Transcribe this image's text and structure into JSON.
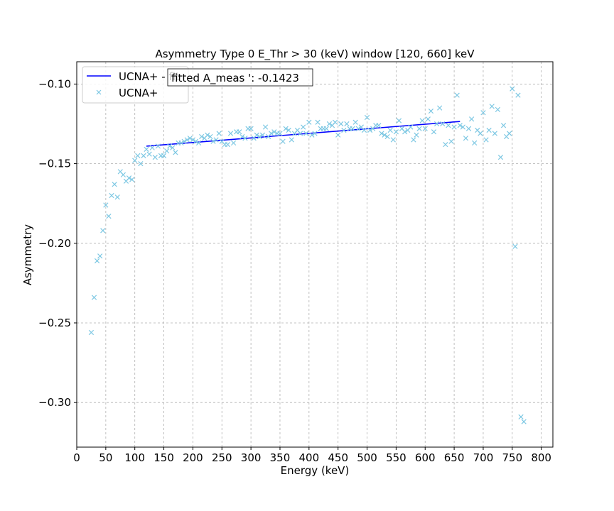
{
  "chart_data": {
    "type": "scatter",
    "title": "Asymmetry Type 0 E_Thr > 30 (keV) window [120, 660] keV",
    "xlabel": "Energy (keV)",
    "ylabel": "Asymmetry",
    "xlim": [
      0,
      820
    ],
    "ylim": [
      -0.328,
      -0.086
    ],
    "xticks": [
      0,
      50,
      100,
      150,
      200,
      250,
      300,
      350,
      400,
      450,
      500,
      550,
      600,
      650,
      700,
      750,
      800
    ],
    "xtick_labels": [
      "0",
      "50",
      "100",
      "150",
      "200",
      "250",
      "300",
      "350",
      "400",
      "450",
      "500",
      "550",
      "600",
      "650",
      "700",
      "750",
      "800"
    ],
    "yticks": [
      -0.3,
      -0.25,
      -0.2,
      -0.15,
      -0.1
    ],
    "ytick_labels": [
      "−0.30",
      "−0.25",
      "−0.20",
      "−0.15",
      "−0.10"
    ],
    "grid": true,
    "legend_position": "top-left",
    "annotation": "fitted A_meas ': -0.1423",
    "fit": {
      "name": "UCNA+ - fit",
      "color": "#0000ff",
      "x": [
        120,
        660
      ],
      "y": [
        -0.139,
        -0.1235
      ]
    },
    "scatter": {
      "name": "UCNA+",
      "color": "#7ec8e3",
      "x": [
        25,
        30,
        35,
        40,
        45,
        50,
        55,
        60,
        65,
        70,
        75,
        80,
        85,
        90,
        95,
        100,
        105,
        110,
        115,
        120,
        125,
        130,
        135,
        140,
        145,
        150,
        155,
        160,
        165,
        170,
        175,
        180,
        185,
        190,
        195,
        200,
        205,
        210,
        215,
        220,
        225,
        230,
        235,
        240,
        245,
        250,
        255,
        260,
        265,
        270,
        275,
        280,
        285,
        290,
        295,
        300,
        305,
        310,
        315,
        320,
        325,
        330,
        335,
        340,
        345,
        350,
        355,
        360,
        365,
        370,
        375,
        380,
        385,
        390,
        395,
        400,
        405,
        410,
        415,
        420,
        425,
        430,
        435,
        440,
        445,
        450,
        455,
        460,
        465,
        470,
        475,
        480,
        485,
        490,
        495,
        500,
        505,
        510,
        515,
        520,
        525,
        530,
        535,
        540,
        545,
        550,
        555,
        560,
        565,
        570,
        575,
        580,
        585,
        590,
        595,
        600,
        605,
        610,
        615,
        620,
        625,
        630,
        635,
        640,
        645,
        650,
        655,
        660,
        665,
        670,
        675,
        680,
        685,
        690,
        695,
        700,
        705,
        710,
        715,
        720,
        725,
        730,
        735,
        740,
        745,
        750,
        755,
        760,
        765,
        770
      ],
      "y": [
        -0.256,
        -0.234,
        -0.211,
        -0.208,
        -0.192,
        -0.176,
        -0.183,
        -0.17,
        -0.163,
        -0.171,
        -0.155,
        -0.157,
        -0.161,
        -0.159,
        -0.16,
        -0.148,
        -0.145,
        -0.15,
        -0.145,
        -0.141,
        -0.144,
        -0.14,
        -0.146,
        -0.139,
        -0.145,
        -0.145,
        -0.142,
        -0.139,
        -0.14,
        -0.143,
        -0.137,
        -0.137,
        -0.136,
        -0.135,
        -0.134,
        -0.135,
        -0.136,
        -0.137,
        -0.133,
        -0.134,
        -0.132,
        -0.133,
        -0.136,
        -0.135,
        -0.131,
        -0.136,
        -0.138,
        -0.138,
        -0.131,
        -0.137,
        -0.13,
        -0.13,
        -0.133,
        -0.134,
        -0.128,
        -0.128,
        -0.134,
        -0.132,
        -0.133,
        -0.132,
        -0.127,
        -0.133,
        -0.131,
        -0.13,
        -0.131,
        -0.131,
        -0.136,
        -0.128,
        -0.129,
        -0.135,
        -0.131,
        -0.129,
        -0.131,
        -0.127,
        -0.131,
        -0.124,
        -0.132,
        -0.131,
        -0.124,
        -0.128,
        -0.128,
        -0.128,
        -0.125,
        -0.126,
        -0.124,
        -0.132,
        -0.125,
        -0.129,
        -0.125,
        -0.128,
        -0.128,
        -0.124,
        -0.128,
        -0.127,
        -0.129,
        -0.121,
        -0.129,
        -0.128,
        -0.126,
        -0.126,
        -0.131,
        -0.132,
        -0.133,
        -0.129,
        -0.135,
        -0.13,
        -0.123,
        -0.128,
        -0.13,
        -0.129,
        -0.127,
        -0.135,
        -0.132,
        -0.128,
        -0.123,
        -0.128,
        -0.122,
        -0.117,
        -0.13,
        -0.125,
        -0.115,
        -0.125,
        -0.138,
        -0.126,
        -0.136,
        -0.127,
        -0.107,
        -0.126,
        -0.127,
        -0.134,
        -0.128,
        -0.122,
        -0.137,
        -0.129,
        -0.131,
        -0.118,
        -0.135,
        -0.129,
        -0.114,
        -0.131,
        -0.116,
        -0.146,
        -0.126,
        -0.133,
        -0.131,
        -0.103,
        -0.202,
        -0.107,
        -0.309,
        -0.312
      ]
    }
  }
}
